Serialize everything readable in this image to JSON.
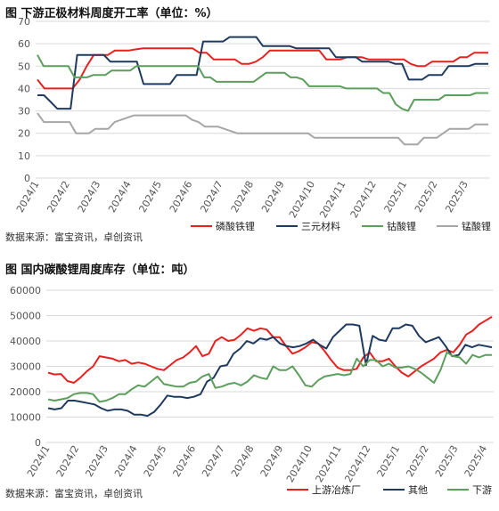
{
  "chart_data": [
    {
      "type": "line",
      "title": "图  下游正极材料周度开工率（单位：%）",
      "source": "数据来源：富宝资讯，卓创资讯",
      "ylim": [
        0,
        70
      ],
      "yticks": [
        0,
        10,
        20,
        30,
        40,
        50,
        60,
        70
      ],
      "x_labels": [
        "2024/1",
        "2024/2",
        "2024/3",
        "2024/4",
        "2024/5",
        "2024/6",
        "2024/7",
        "2024/8",
        "2024/9",
        "2024/10",
        "2024/11",
        "2024/12",
        "2025/1",
        "2025/2",
        "2025/3"
      ],
      "legend_position": "bottom-right",
      "grid": true,
      "series": [
        {
          "name": "磷酸铁锂",
          "color": "#e8201e",
          "values": [
            44,
            40,
            40,
            40,
            40,
            40,
            44,
            50,
            55,
            55,
            55,
            57,
            57,
            57,
            57.5,
            58,
            58,
            58,
            58,
            58,
            58,
            58,
            58,
            56,
            56,
            53,
            53,
            53,
            53,
            51,
            51,
            52,
            54,
            57,
            57,
            57,
            57,
            57,
            57,
            57,
            57,
            53,
            53,
            53,
            54,
            54,
            54,
            53,
            53,
            53,
            53,
            53,
            53,
            51,
            50,
            50,
            52,
            52,
            52,
            52,
            54,
            54,
            56,
            56,
            56
          ]
        },
        {
          "name": "三元材料",
          "color": "#1f3a5f",
          "values": [
            37,
            37,
            34,
            31,
            31,
            31,
            55,
            55,
            55,
            55,
            55,
            52,
            52,
            52,
            52,
            52,
            42,
            42,
            42,
            42,
            42,
            46,
            46,
            46,
            46,
            61,
            61,
            61,
            61,
            63,
            63,
            63,
            63,
            63,
            59,
            59,
            59,
            59,
            59,
            58,
            58,
            58,
            58,
            58,
            58,
            54,
            54,
            54,
            54,
            52,
            52,
            52,
            52,
            52,
            51,
            51,
            44,
            44,
            44,
            46,
            46,
            46,
            50,
            50,
            50,
            50,
            51,
            51,
            51
          ]
        },
        {
          "name": "钴酸锂",
          "color": "#5c9e5c",
          "values": [
            55,
            50,
            50,
            50,
            50,
            50,
            45,
            45,
            45,
            46,
            46,
            46,
            48,
            48,
            48,
            48,
            50,
            50,
            50,
            50,
            50,
            50,
            50,
            50,
            50,
            50,
            50,
            45,
            45,
            43,
            43,
            43,
            43,
            43,
            43,
            43,
            45,
            47,
            47,
            47,
            47,
            45,
            45,
            44,
            41,
            41,
            41,
            41,
            41,
            41,
            40,
            40,
            40,
            40,
            40,
            40,
            38,
            38,
            33,
            31,
            30,
            35,
            35,
            35,
            35,
            35,
            37,
            37,
            37,
            37,
            37,
            38,
            38,
            38
          ]
        },
        {
          "name": "锰酸锂",
          "color": "#a6a6a6",
          "values": [
            29,
            25,
            25,
            25,
            25,
            25,
            20,
            20,
            20,
            22,
            22,
            22,
            25,
            26,
            27,
            28,
            28,
            28,
            28,
            28,
            28,
            28,
            28,
            28,
            26,
            25,
            23,
            23,
            23,
            22,
            21,
            20,
            20,
            20,
            20,
            20,
            20,
            20,
            20,
            20,
            20,
            20,
            20,
            18,
            18,
            18,
            18,
            18,
            18,
            18,
            18,
            18,
            18,
            18,
            18,
            18,
            18,
            15,
            15,
            15,
            18,
            18,
            18,
            20,
            22,
            22,
            22,
            22,
            24,
            24,
            24
          ]
        }
      ]
    },
    {
      "type": "line",
      "title": "图  国内碳酸锂周度库存（单位：吨）",
      "source": "数据来源：富宝资讯，卓创资讯",
      "ylim": [
        0,
        60000
      ],
      "yticks": [
        0,
        10000,
        20000,
        30000,
        40000,
        50000,
        60000
      ],
      "x_labels": [
        "2024/1",
        "2024/2",
        "2024/3",
        "2024/4",
        "2024/5",
        "2024/6",
        "2024/7",
        "2024/8",
        "2024/9",
        "2024/10",
        "2024/11",
        "2024/12",
        "2025/1",
        "2025/2",
        "2025/3",
        "2025/4"
      ],
      "legend_position": "bottom-right",
      "grid": true,
      "series": [
        {
          "name": "上游冶炼厂",
          "color": "#e8201e",
          "values": [
            27500,
            26800,
            27000,
            24200,
            23500,
            25500,
            28000,
            30000,
            34000,
            33500,
            33000,
            32000,
            32500,
            31000,
            31500,
            31000,
            30000,
            29000,
            28500,
            30500,
            32500,
            33500,
            35500,
            38000,
            34000,
            35000,
            40000,
            41500,
            40000,
            40500,
            42500,
            45000,
            44000,
            45000,
            44500,
            41500,
            41500,
            38000,
            35000,
            36000,
            37500,
            39500,
            39000,
            36000,
            32500,
            29500,
            28500,
            28500,
            29000,
            33500,
            35500,
            32000,
            32000,
            33000,
            30000,
            27500,
            26000,
            28000,
            30000,
            31500,
            33000,
            35500,
            36500,
            35500,
            38500,
            42500,
            44000,
            46500,
            48000,
            49500
          ]
        },
        {
          "name": "其他",
          "color": "#1f3a5f",
          "values": [
            13500,
            13000,
            13500,
            16500,
            16500,
            16000,
            15500,
            15000,
            13500,
            12500,
            13000,
            13000,
            12500,
            11000,
            11000,
            10500,
            12000,
            15000,
            18500,
            18000,
            18000,
            17500,
            18000,
            19000,
            24000,
            25500,
            30000,
            30500,
            35000,
            37000,
            40000,
            39000,
            41000,
            40500,
            41500,
            39000,
            38000,
            37500,
            38000,
            39000,
            40500,
            38500,
            37000,
            41500,
            44000,
            46500,
            46500,
            46000,
            30500,
            42000,
            40500,
            40000,
            45000,
            45000,
            46500,
            46000,
            42000,
            39500,
            40500,
            41500,
            38000,
            34000,
            34500,
            38500,
            37500,
            38500,
            38000,
            37500
          ]
        },
        {
          "name": "下游",
          "color": "#5c9e5c",
          "values": [
            17000,
            16500,
            17000,
            17500,
            19000,
            19500,
            19500,
            19000,
            16000,
            16500,
            17500,
            19000,
            19000,
            21000,
            22500,
            22000,
            24000,
            26000,
            23000,
            22500,
            22000,
            22000,
            23500,
            24000,
            26000,
            27000,
            21500,
            22000,
            23000,
            23500,
            22500,
            24000,
            26500,
            25500,
            25000,
            30000,
            28500,
            28500,
            30000,
            26500,
            22500,
            22000,
            24500,
            26000,
            26500,
            27000,
            26500,
            27000,
            33000,
            30000,
            32500,
            32500,
            30000,
            31000,
            29500,
            29500,
            30000,
            29000,
            27500,
            25500,
            23500,
            28500,
            35500,
            34000,
            33500,
            31000,
            34500,
            33500,
            34500,
            34500
          ]
        }
      ]
    }
  ]
}
